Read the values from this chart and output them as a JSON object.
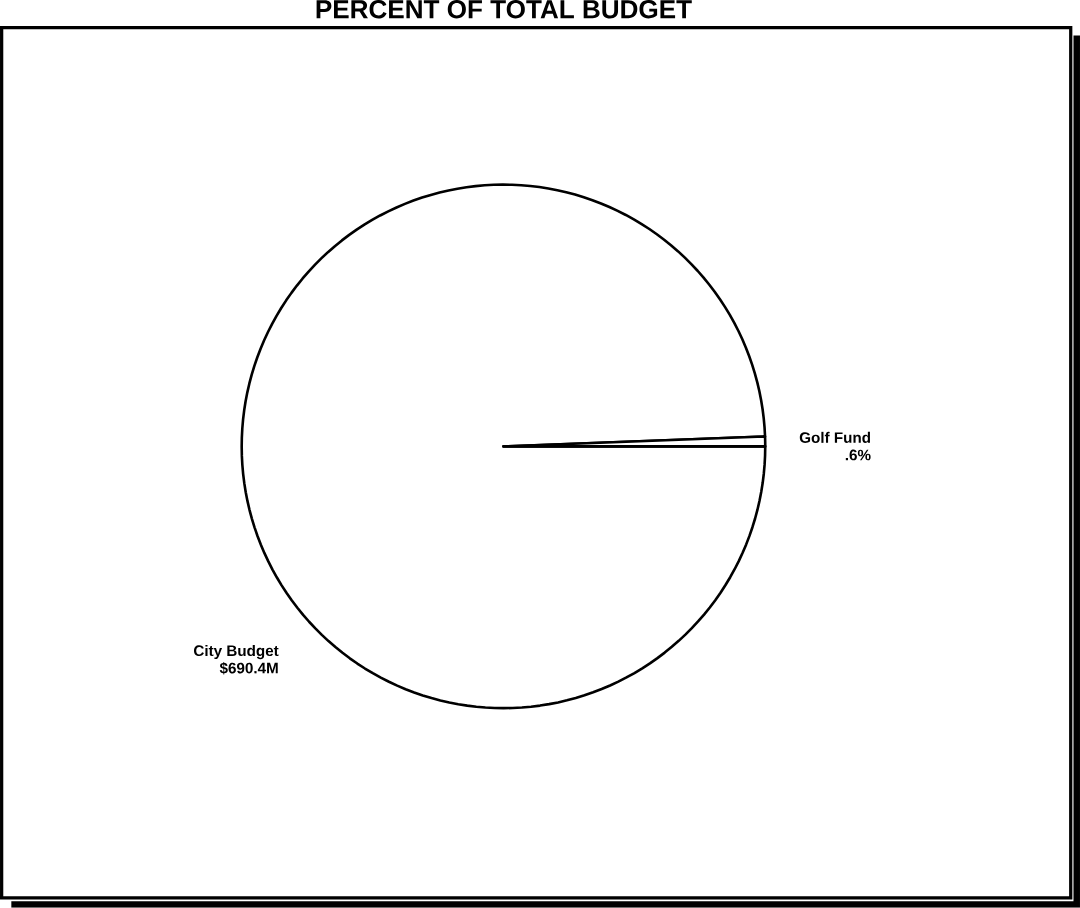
{
  "chart_data": {
    "type": "pie",
    "title": "PERCENT OF TOTAL BUDGET",
    "categories": [
      "City Budget",
      "Golf Fund"
    ],
    "values": [
      99.4,
      0.6
    ],
    "value_labels": [
      null,
      ".6%"
    ],
    "annotations": [
      "$690.4M"
    ],
    "colors": [
      "#ffffff",
      "#ffffff"
    ]
  }
}
